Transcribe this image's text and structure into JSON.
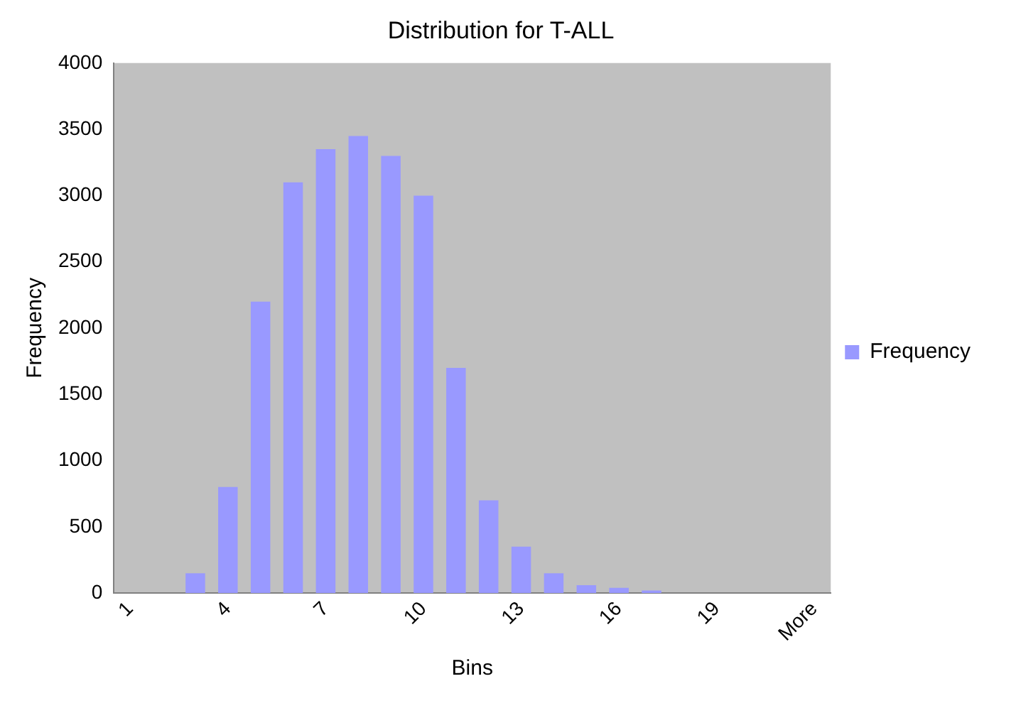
{
  "chart_data": {
    "type": "bar",
    "title": "Distribution for T-ALL",
    "xlabel": "Bins",
    "ylabel": "Frequency",
    "categories": [
      "1",
      null,
      null,
      "4",
      null,
      null,
      "7",
      null,
      null,
      "10",
      null,
      null,
      "13",
      null,
      null,
      "16",
      null,
      null,
      "19",
      null,
      null,
      "More"
    ],
    "series": [
      {
        "name": "Frequency",
        "color": "#9999ff",
        "values": [
          0,
          0,
          150,
          800,
          2200,
          3100,
          3350,
          3450,
          3300,
          3000,
          1700,
          700,
          350,
          150,
          60,
          40,
          20,
          0,
          0,
          0,
          0,
          0
        ]
      }
    ],
    "ylim": [
      0,
      4000
    ],
    "yticks": [
      0,
      500,
      1000,
      1500,
      2000,
      2500,
      3000,
      3500,
      4000
    ],
    "grid": false,
    "legend": "right"
  }
}
